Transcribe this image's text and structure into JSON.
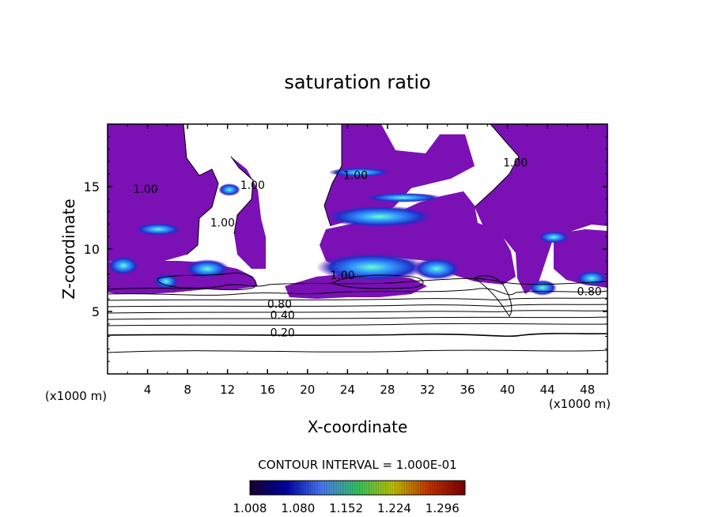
{
  "chart_data": {
    "type": "heatmap",
    "title": "saturation ratio",
    "xlabel": "X-coordinate",
    "ylabel": "Z-coordinate",
    "x_unit": "(x1000 m)",
    "z_unit": "(x1000 m)",
    "xlim": [
      0,
      50
    ],
    "ylim": [
      0,
      20
    ],
    "x_ticks": [
      "4",
      "8",
      "12",
      "16",
      "20",
      "24",
      "28",
      "32",
      "36",
      "40",
      "44",
      "48"
    ],
    "y_ticks": [
      "5",
      "10",
      "15"
    ],
    "contour_interval_label": "CONTOUR INTERVAL = 1.000E-01",
    "contour_labels": [
      {
        "text": "1.00",
        "x": 3.8,
        "z": 14.5
      },
      {
        "text": "1.00",
        "x": 14.5,
        "z": 14.8
      },
      {
        "text": "1.00",
        "x": 11.5,
        "z": 11.8
      },
      {
        "text": "1.00",
        "x": 24.8,
        "z": 15.6
      },
      {
        "text": "1.00",
        "x": 40.8,
        "z": 16.6
      },
      {
        "text": "1.00",
        "x": 23.5,
        "z": 7.6
      },
      {
        "text": "0.80",
        "x": 17.2,
        "z": 5.3
      },
      {
        "text": "0.80",
        "x": 48.2,
        "z": 6.3
      },
      {
        "text": "0.40",
        "x": 17.5,
        "z": 4.4
      },
      {
        "text": "0.20",
        "x": 17.5,
        "z": 3.0
      }
    ],
    "colorbar": {
      "min": 1.008,
      "max": 1.33,
      "tick_labels": [
        "1.008",
        "1.080",
        "1.152",
        "1.224",
        "1.296"
      ],
      "colors": [
        "#1a0033",
        "#0000aa",
        "#4d7fff",
        "#33cc66",
        "#c8c800",
        "#cc3300",
        "#800000"
      ]
    },
    "fill_color": "#7b10b5",
    "supersaturated_regions_z_range": [
      5.8,
      20
    ],
    "grid": false
  }
}
